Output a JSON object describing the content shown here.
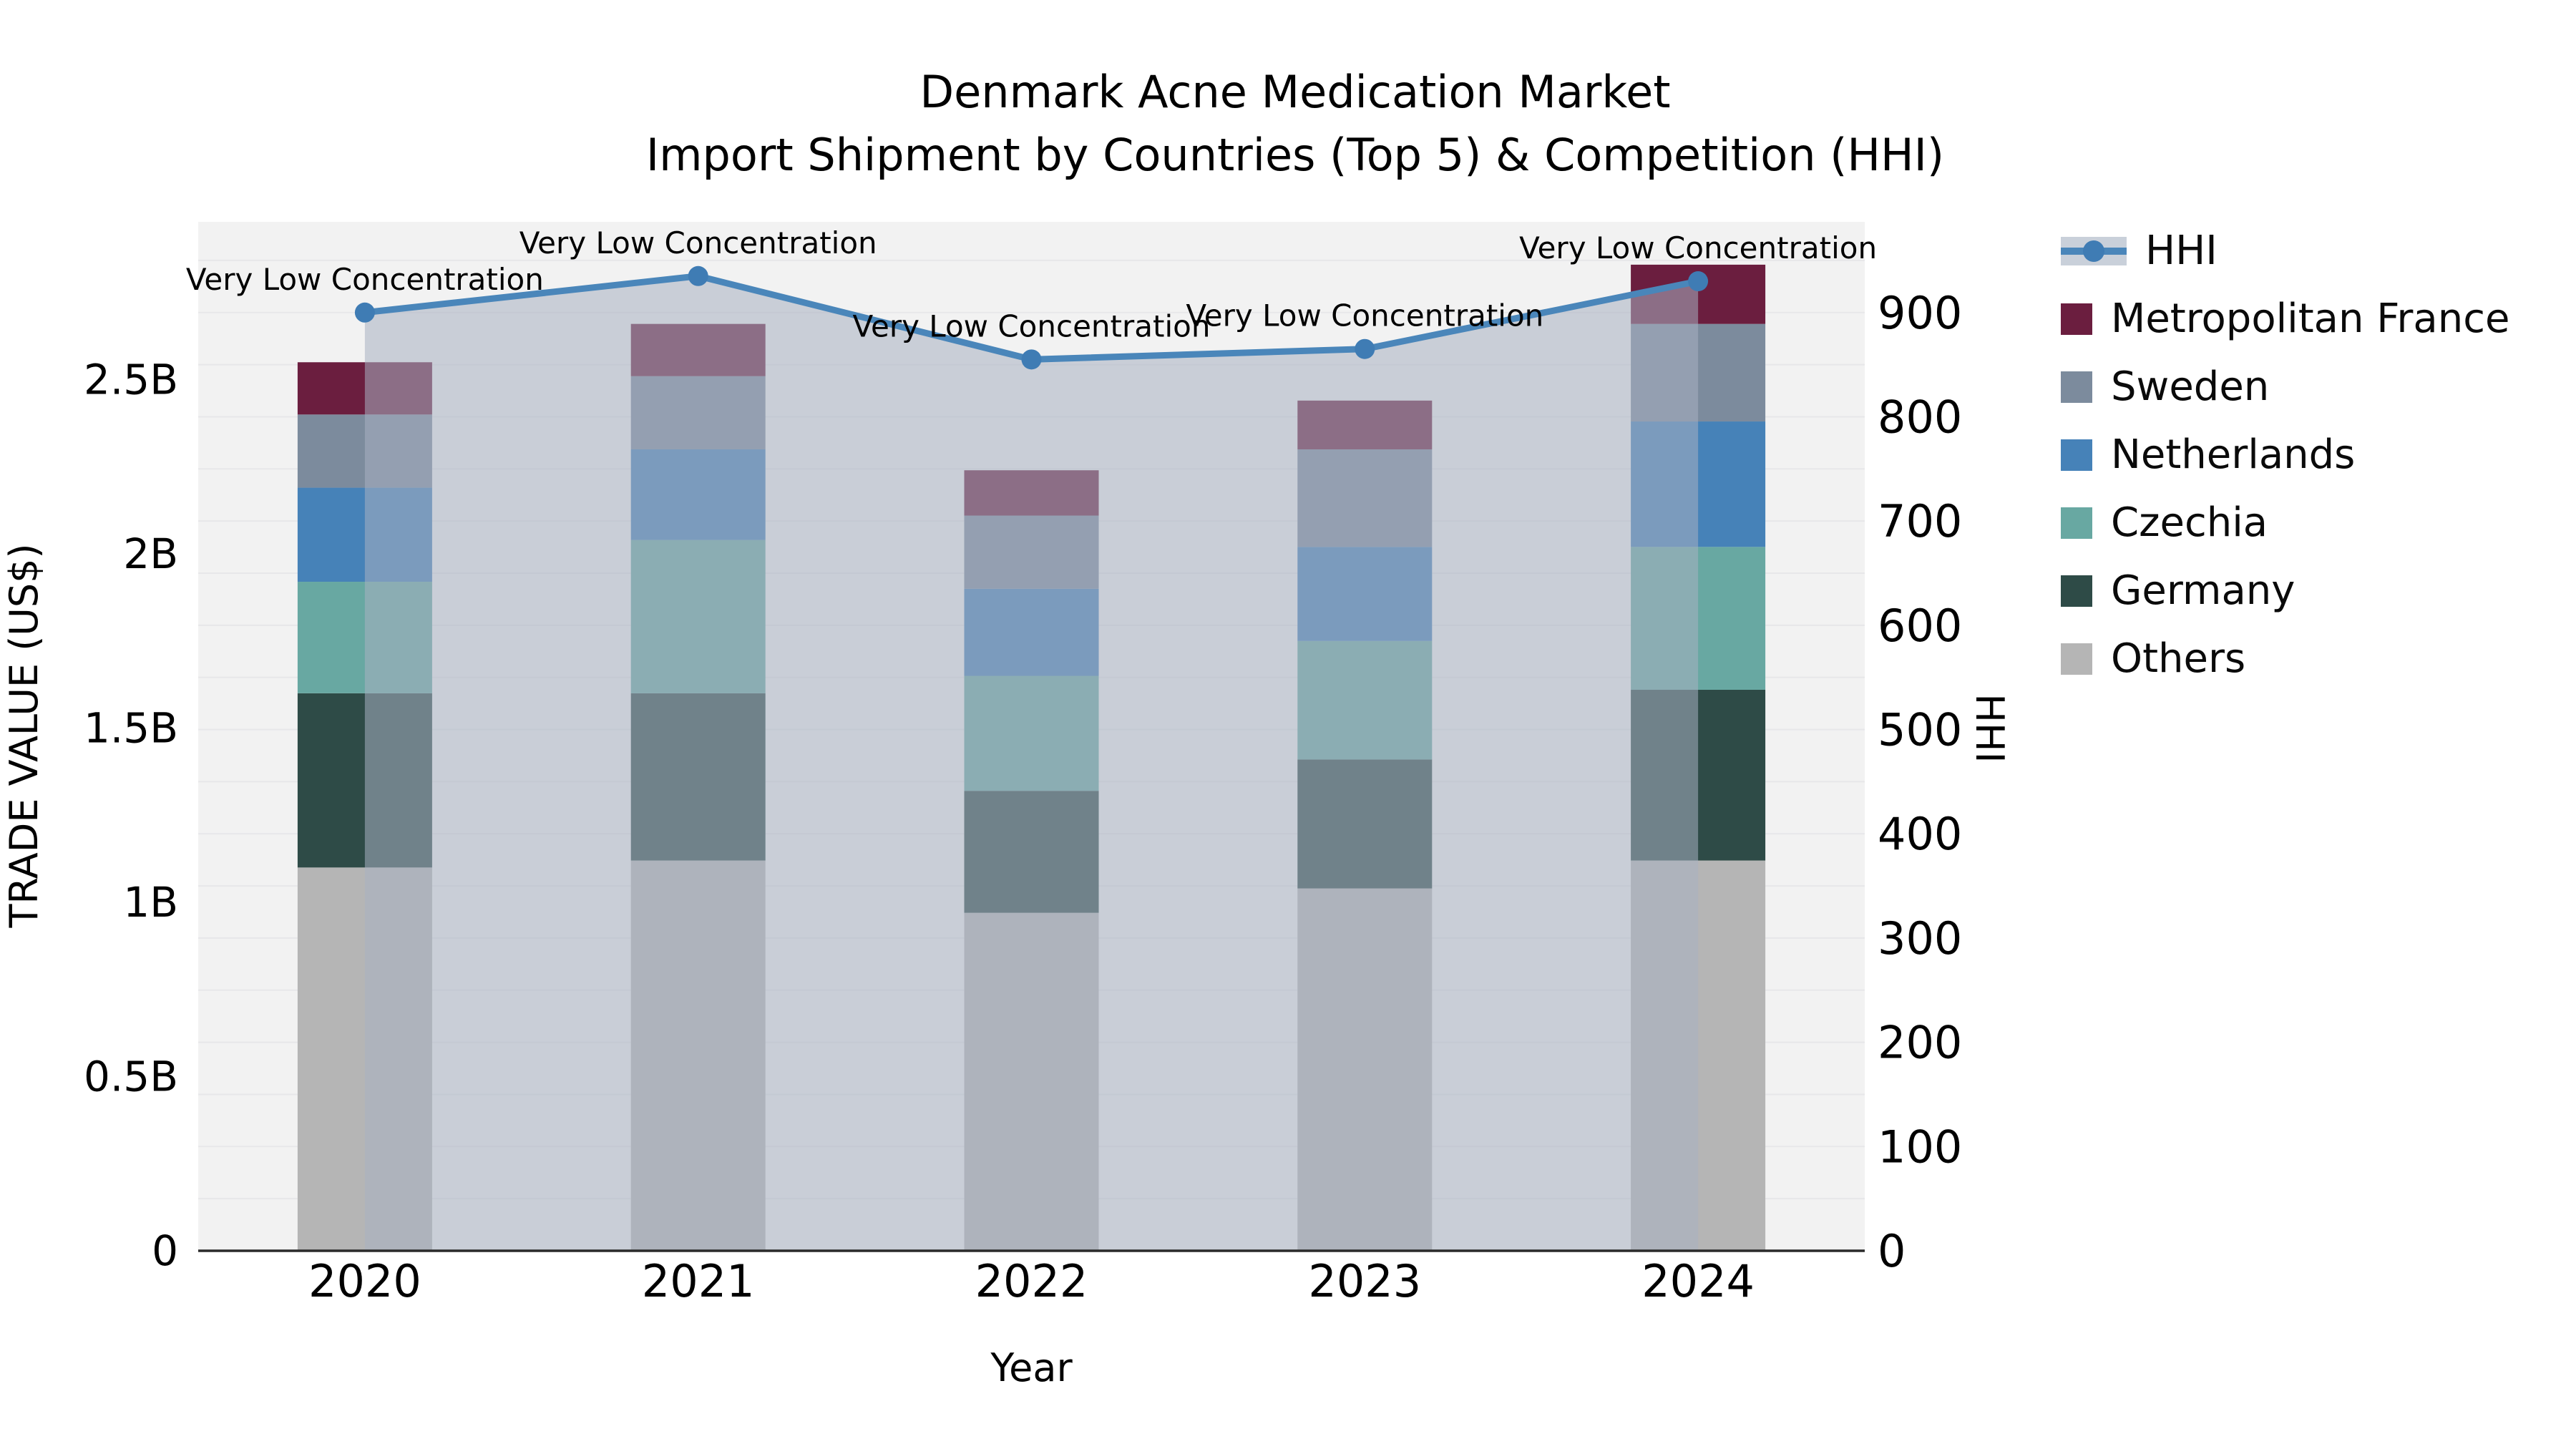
{
  "title": {
    "line1": "Denmark Acne Medication Market",
    "line2": "Import Shipment by Countries (Top 5) & Competition (HHI)"
  },
  "legend": {
    "items": [
      {
        "label": "HHI",
        "type": "line",
        "color": "#4a86ba"
      },
      {
        "label": "Metropolitan France",
        "type": "swatch",
        "color": "#6b1e3f"
      },
      {
        "label": "Sweden",
        "type": "swatch",
        "color": "#7c8b9d"
      },
      {
        "label": "Netherlands",
        "type": "swatch",
        "color": "#4682b8"
      },
      {
        "label": "Czechia",
        "type": "swatch",
        "color": "#68a8a2"
      },
      {
        "label": "Germany",
        "type": "swatch",
        "color": "#2e4b47"
      },
      {
        "label": "Others",
        "type": "swatch",
        "color": "#b5b5b5"
      }
    ]
  },
  "chart_data": {
    "type": "bar",
    "subtype": "stacked-bars-with-line-overlay",
    "title": "Denmark Acne Medication Market",
    "subtitle": "Import Shipment by Countries (Top 5) & Competition (HHI)",
    "xlabel": "Year",
    "ylabel_left": "TRADE VALUE (US$)",
    "ylabel_right": "HHI",
    "categories": [
      "2020",
      "2021",
      "2022",
      "2023",
      "2024"
    ],
    "value_unit": "billions of US$",
    "series": [
      {
        "name": "Others",
        "color": "#b5b5b5",
        "values": [
          1.1,
          1.12,
          0.97,
          1.04,
          1.12
        ]
      },
      {
        "name": "Germany",
        "color": "#2e4b47",
        "values": [
          0.5,
          0.48,
          0.35,
          0.37,
          0.49
        ]
      },
      {
        "name": "Czechia",
        "color": "#68a8a2",
        "values": [
          0.32,
          0.44,
          0.33,
          0.34,
          0.41
        ]
      },
      {
        "name": "Netherlands",
        "color": "#4682b8",
        "values": [
          0.27,
          0.26,
          0.25,
          0.27,
          0.36
        ]
      },
      {
        "name": "Sweden",
        "color": "#7c8b9d",
        "values": [
          0.21,
          0.21,
          0.21,
          0.28,
          0.28
        ]
      },
      {
        "name": "Metropolitan France",
        "color": "#6b1e3f",
        "values": [
          0.15,
          0.15,
          0.13,
          0.14,
          0.17
        ]
      }
    ],
    "bar_totals": [
      2.55,
      2.66,
      2.24,
      2.44,
      2.83
    ],
    "line_series": {
      "name": "HHI",
      "color": "#4a86ba",
      "marker_color": "#3f7cb4",
      "area_color": "#a8b1c1",
      "area_opacity": 0.55,
      "values": [
        900,
        935,
        855,
        865,
        930
      ]
    },
    "annotations": [
      "Very Low Concentration",
      "Very Low Concentration",
      "Very Low Concentration",
      "Very Low Concentration",
      "Very Low Concentration"
    ],
    "axes": {
      "left": {
        "tick_values": [
          0,
          0.5,
          1.0,
          1.5,
          2.0,
          2.5
        ],
        "tick_labels": [
          "0",
          "0.5B",
          "1B",
          "1.5B",
          "2B",
          "2.5B"
        ],
        "max": 2.953
      },
      "right": {
        "tick_values": [
          0,
          100,
          200,
          300,
          400,
          500,
          600,
          700,
          800,
          900
        ],
        "tick_labels": [
          "0",
          "100",
          "200",
          "300",
          "400",
          "500",
          "600",
          "700",
          "800",
          "900"
        ],
        "max": 987,
        "minor_grid_step": 50
      }
    },
    "plot_bg": "#f2f2f2",
    "grid_color": "#e7e7e9",
    "spine_color": "#2a2a2a"
  }
}
